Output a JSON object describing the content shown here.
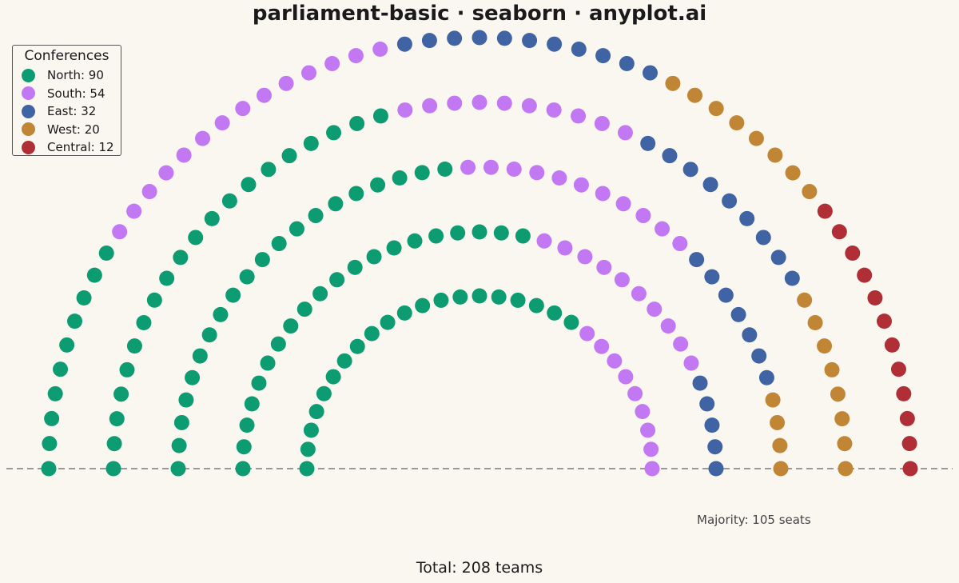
{
  "chart_data": {
    "type": "parliament",
    "title": "parliament-basic · seaborn · anyplot.ai",
    "legend": {
      "title": "Conferences",
      "placement": "top-left",
      "entries": [
        {
          "name": "North",
          "label": "North: 90",
          "seats": 90,
          "color": "#0d9b72"
        },
        {
          "name": "South",
          "label": "South: 54",
          "seats": 54,
          "color": "#c278f2"
        },
        {
          "name": "East",
          "label": "East: 32",
          "seats": 32,
          "color": "#3f63a3"
        },
        {
          "name": "West",
          "label": "West: 20",
          "seats": 20,
          "color": "#c08635"
        },
        {
          "name": "Central",
          "label": "Central: 12",
          "seats": 12,
          "color": "#b02e35"
        }
      ]
    },
    "rows": [
      {
        "seats": 29,
        "parties": [
          {
            "name": "North",
            "seats": 20
          },
          {
            "name": "South",
            "seats": 9
          }
        ]
      },
      {
        "seats": 35,
        "parties": [
          {
            "name": "North",
            "seats": 20
          },
          {
            "name": "South",
            "seats": 10
          },
          {
            "name": "East",
            "seats": 5
          }
        ]
      },
      {
        "seats": 42,
        "parties": [
          {
            "name": "North",
            "seats": 20
          },
          {
            "name": "South",
            "seats": 11
          },
          {
            "name": "East",
            "seats": 7
          },
          {
            "name": "West",
            "seats": 4
          }
        ]
      },
      {
        "seats": 47,
        "parties": [
          {
            "name": "North",
            "seats": 20
          },
          {
            "name": "South",
            "seats": 10
          },
          {
            "name": "East",
            "seats": 9
          },
          {
            "name": "West",
            "seats": 8
          }
        ]
      },
      {
        "seats": 55,
        "parties": [
          {
            "name": "North",
            "seats": 10
          },
          {
            "name": "South",
            "seats": 14
          },
          {
            "name": "East",
            "seats": 11
          },
          {
            "name": "West",
            "seats": 8
          },
          {
            "name": "Central",
            "seats": 12
          }
        ]
      }
    ],
    "majority_line": true,
    "majority_text": "Majority: 105 seats",
    "total_text": "Total: 208 teams",
    "total_seats": 208,
    "majority": 105
  }
}
